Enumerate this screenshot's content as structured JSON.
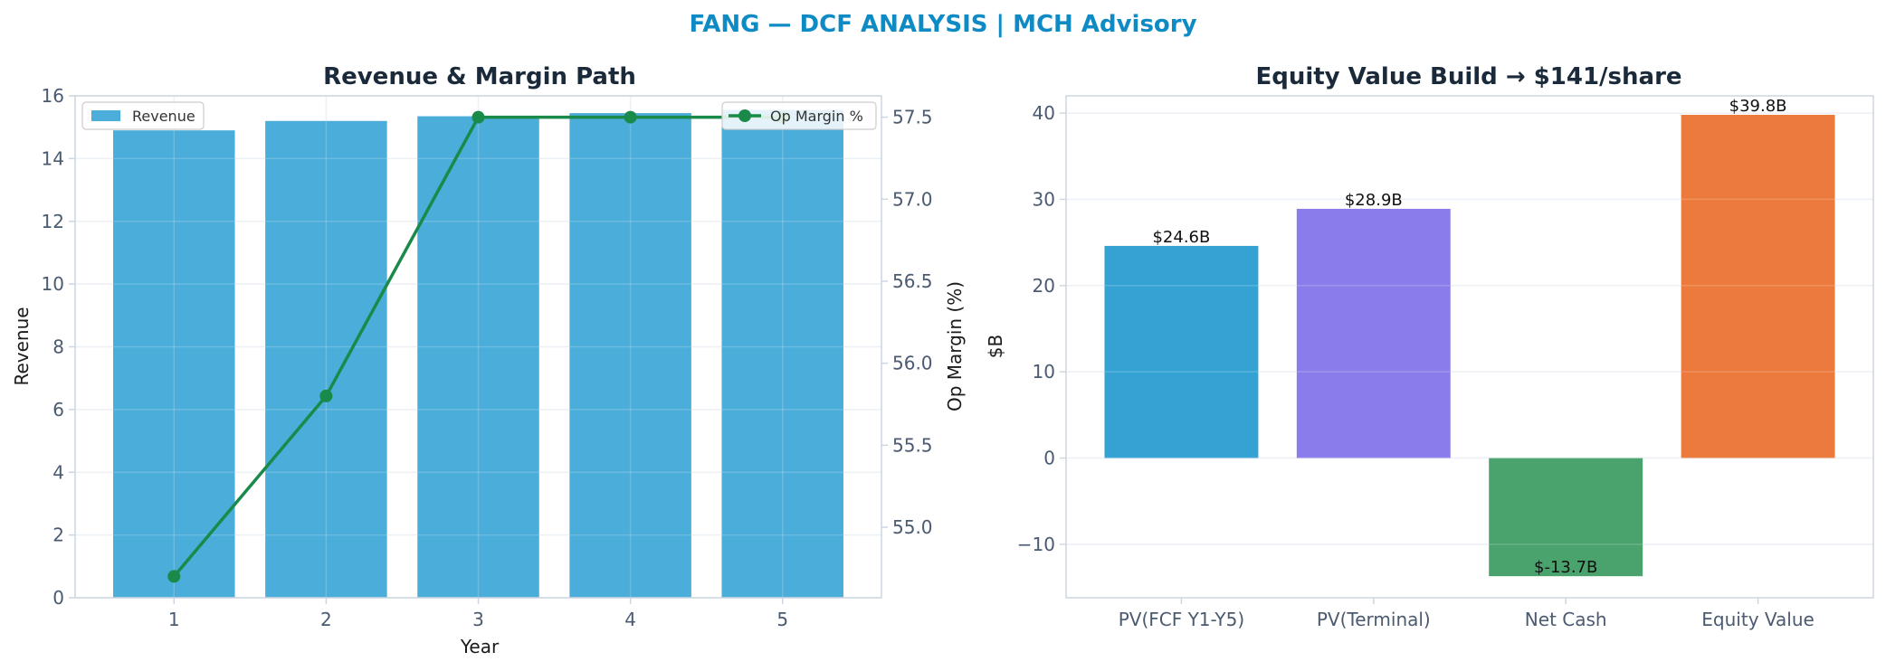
{
  "suptitle": "FANG — DCF ANALYSIS | MCH Advisory",
  "colors": {
    "title": "#0e8bc4",
    "revenue": "#4badd9",
    "margin": "#1a8a4a",
    "pv_fcf": "#34a3d4",
    "pv_terminal": "#8a7deb",
    "net_cash": "#4aa26d",
    "equity": "#ec7a3c"
  },
  "chart_data": [
    {
      "type": "bar",
      "title": "Revenue & Margin Path",
      "xlabel": "Year",
      "ylabel": "Revenue",
      "y2label": "Op Margin (%)",
      "categories": [
        "1",
        "2",
        "3",
        "4",
        "5"
      ],
      "ylim": [
        0,
        16
      ],
      "yticks": [
        "0",
        "2",
        "4",
        "6",
        "8",
        "10",
        "12",
        "14",
        "16"
      ],
      "y2lim": [
        54.57,
        57.63
      ],
      "y2ticks": [
        "55.0",
        "55.5",
        "56.0",
        "56.5",
        "57.0",
        "57.5"
      ],
      "grid": true,
      "series": [
        {
          "name": "Revenue",
          "type": "bar",
          "axis": "left",
          "values": [
            14.9,
            15.2,
            15.35,
            15.45,
            15.55
          ]
        },
        {
          "name": "Op Margin %",
          "type": "line",
          "axis": "right",
          "values": [
            54.7,
            55.8,
            57.5,
            57.5,
            57.5
          ]
        }
      ],
      "legend": {
        "revenue": "top-left",
        "margin": "top-right"
      }
    },
    {
      "type": "bar",
      "title": "Equity Value Build → $141/share",
      "xlabel": "",
      "ylabel": "$B",
      "categories": [
        "PV(FCF Y1-Y5)",
        "PV(Terminal)",
        "Net Cash",
        "Equity Value"
      ],
      "values": [
        24.6,
        28.9,
        -13.7,
        39.8
      ],
      "data_labels": [
        "$24.6B",
        "$28.9B",
        "$-13.7B",
        "$39.8B"
      ],
      "ylim": [
        -16.2,
        42.0
      ],
      "yticks": [
        "−10",
        "0",
        "10",
        "20",
        "30",
        "40"
      ],
      "grid": true
    }
  ]
}
